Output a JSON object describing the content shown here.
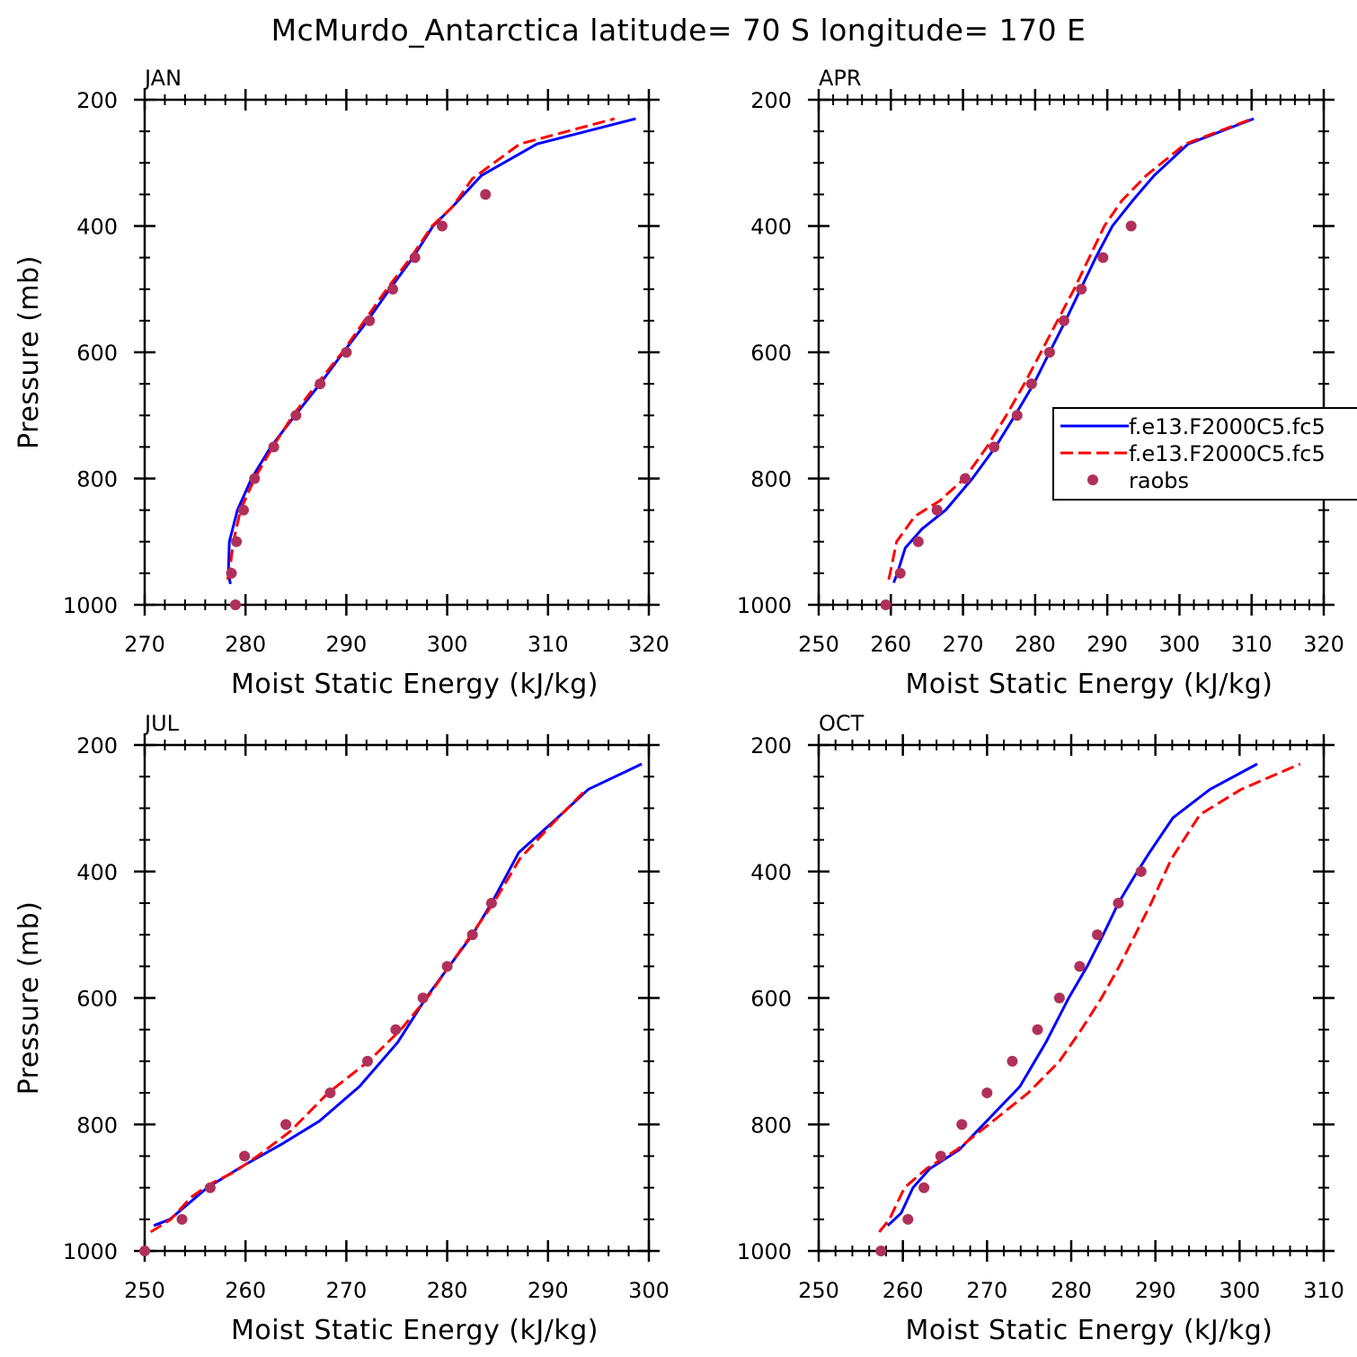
{
  "title": "McMurdo_Antarctica  latitude= 70 S longitude= 170 E",
  "legend": {
    "entries": [
      {
        "label": "f.e13.F2000C5.fc5",
        "color": "#0000ff",
        "style": "solid"
      },
      {
        "label": "f.e13.F2000C5.fc5",
        "color": "#ff0000",
        "style": "dashed"
      },
      {
        "label": "raobs",
        "color": "#b0305a",
        "style": "marker"
      }
    ]
  },
  "chart_data": [
    {
      "type": "line",
      "panel": "JAN",
      "xlabel": "Moist Static Energy (kJ/kg)",
      "ylabel": "Pressure (mb)",
      "xlim": [
        270,
        320
      ],
      "ylim": [
        1000,
        200
      ],
      "xticks": [
        "270",
        "280",
        "290",
        "300",
        "310",
        "320"
      ],
      "yticks": [
        "200",
        "400",
        "600",
        "800",
        "1000"
      ],
      "series": [
        {
          "color": "#0000ff",
          "style": "solid",
          "x": [
            278.5,
            278.3,
            278.4,
            279.2,
            280.6,
            282.5,
            284.9,
            287.4,
            289.7,
            292.1,
            294.3,
            296.6,
            298.6,
            300.5,
            303.4,
            308.9,
            318.7
          ],
          "y": [
            967,
            950,
            900,
            850,
            800,
            750,
            700,
            650,
            600,
            550,
            500,
            450,
            400,
            370,
            320,
            270,
            230
          ]
        },
        {
          "color": "#ff0000",
          "style": "dashed",
          "x": [
            278.2,
            278.4,
            278.8,
            279.5,
            280.9,
            282.7,
            284.7,
            287.1,
            289.6,
            291.8,
            294.0,
            296.4,
            298.5,
            300.5,
            302.5,
            307.2,
            316.6
          ],
          "y": [
            960,
            950,
            900,
            850,
            800,
            750,
            700,
            650,
            600,
            550,
            500,
            450,
            400,
            370,
            325,
            270,
            230
          ]
        },
        {
          "color": "#b0305a",
          "style": "marker",
          "x": [
            279.0,
            278.6,
            279.1,
            279.8,
            280.9,
            282.8,
            285.0,
            287.4,
            290.0,
            292.3,
            294.6,
            296.8,
            299.5,
            303.8
          ],
          "y": [
            1000,
            950,
            900,
            850,
            800,
            750,
            700,
            650,
            600,
            550,
            500,
            450,
            400,
            350
          ]
        }
      ]
    },
    {
      "type": "line",
      "panel": "APR",
      "xlabel": "Moist Static Energy (kJ/kg)",
      "ylabel": "",
      "xlim": [
        250,
        320
      ],
      "ylim": [
        1000,
        200
      ],
      "xticks": [
        "250",
        "260",
        "270",
        "280",
        "290",
        "300",
        "310",
        "320"
      ],
      "yticks": [
        "200",
        "400",
        "600",
        "800",
        "1000"
      ],
      "series": [
        {
          "color": "#0000ff",
          "style": "solid",
          "x": [
            260.4,
            260.9,
            262.0,
            264.3,
            267.6,
            271.3,
            274.5,
            277.2,
            279.8,
            282.0,
            284.2,
            286.3,
            288.4,
            290.7,
            293.5,
            296.5,
            301.2,
            310.3
          ],
          "y": [
            965,
            950,
            910,
            880,
            850,
            800,
            750,
            700,
            650,
            600,
            550,
            500,
            450,
            400,
            360,
            320,
            270,
            230
          ]
        },
        {
          "color": "#ff0000",
          "style": "dashed",
          "x": [
            259.7,
            259.9,
            260.8,
            263.3,
            266.8,
            270.2,
            273.3,
            276.0,
            278.5,
            280.8,
            283.1,
            285.4,
            287.5,
            289.6,
            292.0,
            295.4,
            300.8,
            310.1
          ],
          "y": [
            960,
            950,
            900,
            860,
            835,
            800,
            750,
            700,
            650,
            600,
            550,
            500,
            450,
            400,
            360,
            320,
            270,
            230
          ]
        },
        {
          "color": "#b0305a",
          "style": "marker",
          "x": [
            259.3,
            261.3,
            263.8,
            266.4,
            270.3,
            274.3,
            277.5,
            279.5,
            282.0,
            284.0,
            286.4,
            289.4,
            293.3
          ],
          "y": [
            1000,
            950,
            900,
            850,
            800,
            750,
            700,
            650,
            600,
            550,
            500,
            450,
            400
          ]
        }
      ]
    },
    {
      "type": "line",
      "panel": "JUL",
      "xlabel": "Moist Static Energy (kJ/kg)",
      "ylabel": "Pressure (mb)",
      "xlim": [
        250,
        300
      ],
      "ylim": [
        1000,
        200
      ],
      "xticks": [
        "250",
        "260",
        "270",
        "280",
        "290",
        "300"
      ],
      "yticks": [
        "200",
        "400",
        "600",
        "800",
        "1000"
      ],
      "series": [
        {
          "color": "#0000ff",
          "style": "solid",
          "x": [
            250.9,
            252.5,
            256.2,
            259.8,
            263.7,
            267.3,
            271.3,
            275.1,
            277.9,
            280.2,
            282.5,
            284.4,
            287.1,
            290.6,
            294.0,
            299.3
          ],
          "y": [
            960,
            950,
            900,
            865,
            830,
            795,
            740,
            670,
            600,
            550,
            500,
            450,
            370,
            320,
            270,
            230
          ]
        },
        {
          "color": "#ff0000",
          "style": "dashed",
          "x": [
            250.6,
            252.6,
            254.6,
            256.4,
            258.9,
            261.2,
            264.5,
            268.2,
            272.2,
            275.4,
            278.0,
            280.2,
            282.4,
            284.6,
            287.2,
            290.4,
            293.8
          ],
          "y": [
            970,
            950,
            915,
            895,
            875,
            850,
            810,
            750,
            700,
            650,
            600,
            550,
            500,
            450,
            380,
            325,
            270
          ]
        },
        {
          "color": "#b0305a",
          "style": "marker",
          "x": [
            250.0,
            253.7,
            256.5,
            259.9,
            264.0,
            268.4,
            272.1,
            274.9,
            277.6,
            280.0,
            282.5,
            284.4
          ],
          "y": [
            1000,
            950,
            900,
            850,
            800,
            750,
            700,
            650,
            600,
            550,
            500,
            450
          ]
        }
      ]
    },
    {
      "type": "line",
      "panel": "OCT",
      "xlabel": "Moist Static Energy (kJ/kg)",
      "ylabel": "",
      "xlim": [
        250,
        310
      ],
      "ylim": [
        1000,
        200
      ],
      "xticks": [
        "250",
        "260",
        "270",
        "280",
        "290",
        "300",
        "310"
      ],
      "yticks": [
        "200",
        "400",
        "600",
        "800",
        "1000"
      ],
      "series": [
        {
          "color": "#0000ff",
          "style": "solid",
          "x": [
            258.2,
            259.8,
            261.2,
            263.2,
            266.7,
            270.3,
            273.9,
            277.0,
            279.7,
            281.9,
            283.8,
            285.6,
            287.4,
            289.3,
            292.1,
            296.5,
            302.1
          ],
          "y": [
            960,
            940,
            900,
            870,
            840,
            790,
            740,
            670,
            600,
            550,
            500,
            450,
            410,
            370,
            315,
            270,
            230
          ]
        },
        {
          "color": "#ff0000",
          "style": "dashed",
          "x": [
            257.2,
            258.4,
            260.2,
            262.8,
            266.4,
            270.2,
            274.9,
            278.6,
            281.2,
            283.6,
            285.7,
            287.6,
            289.5,
            291.9,
            295.3,
            300.2,
            307.2
          ],
          "y": [
            970,
            950,
            900,
            870,
            840,
            800,
            750,
            700,
            650,
            600,
            550,
            500,
            450,
            380,
            310,
            270,
            230
          ]
        },
        {
          "color": "#b0305a",
          "style": "marker",
          "x": [
            257.4,
            260.6,
            262.5,
            264.5,
            267.0,
            270.0,
            273.0,
            276.0,
            278.6,
            281.0,
            283.1,
            285.6,
            288.3
          ],
          "y": [
            1000,
            950,
            900,
            850,
            800,
            750,
            700,
            650,
            600,
            550,
            500,
            450,
            400
          ]
        }
      ]
    }
  ]
}
